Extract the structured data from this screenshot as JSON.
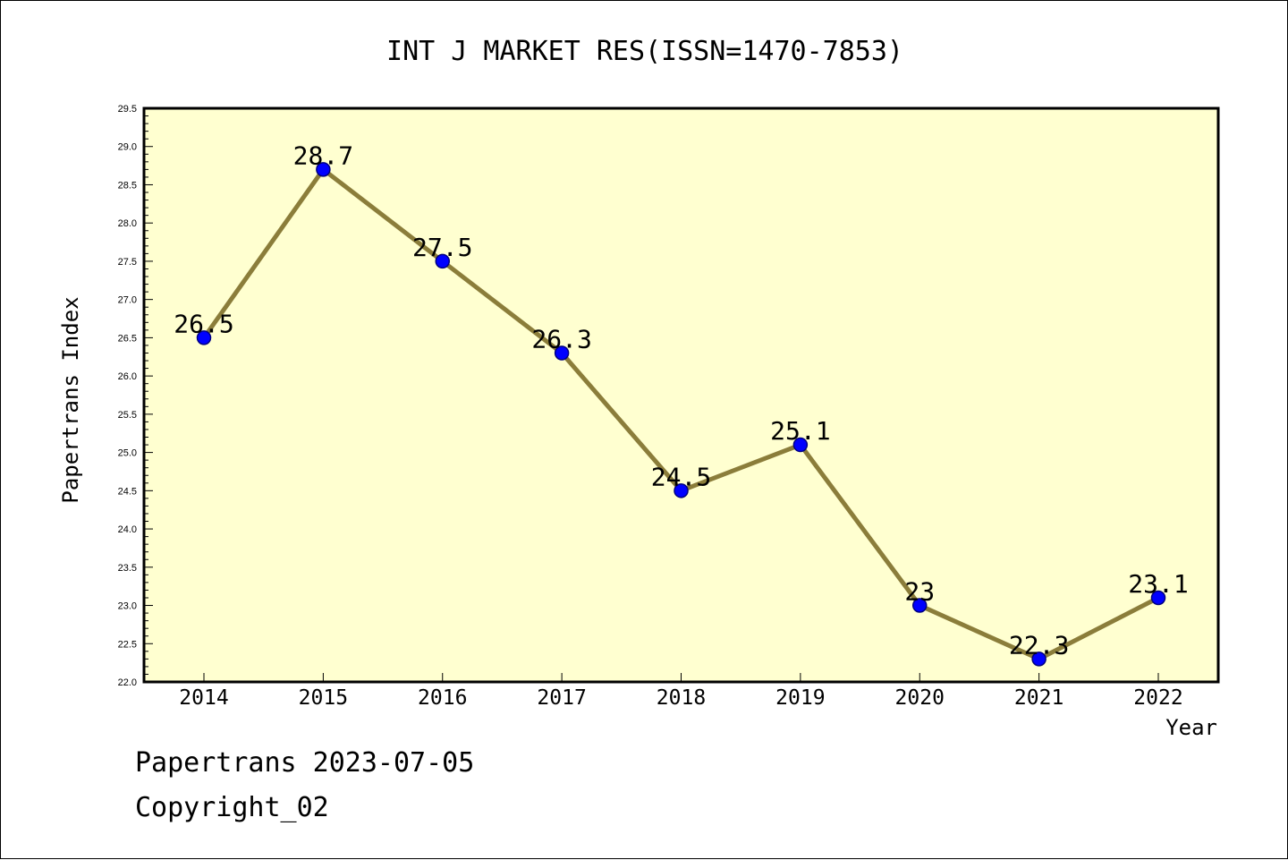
{
  "chart_data": {
    "type": "line",
    "title": "INT J MARKET RES(ISSN=1470-7853)",
    "xlabel": "Year",
    "ylabel": "Papertrans Index",
    "categories": [
      "2014",
      "2015",
      "2016",
      "2017",
      "2018",
      "2019",
      "2020",
      "2021",
      "2022"
    ],
    "series": [
      {
        "values": [
          26.5,
          28.7,
          27.5,
          26.3,
          24.5,
          25.1,
          23.0,
          22.3,
          23.1
        ]
      }
    ],
    "data_labels": [
      "26.5",
      "28.7",
      "27.5",
      "26.3",
      "24.5",
      "25.1",
      "23",
      "22.3",
      "23.1"
    ],
    "ylim": [
      22.0,
      29.5
    ],
    "yticks": [
      "22.0",
      "22.5",
      "23.0",
      "23.5",
      "24.0",
      "24.5",
      "25.0",
      "25.5",
      "26.0",
      "26.5",
      "27.0",
      "27.5",
      "28.0",
      "28.5",
      "29.0",
      "29.5"
    ],
    "grid": false,
    "legend": "none",
    "colors": {
      "plot_background": "#ffffd0",
      "line": "#8b7d3a",
      "marker_fill": "#0000ff",
      "marker_edge": "#000080"
    }
  },
  "footer": {
    "line1": "Papertrans 2023-07-05",
    "line2": "Copyright_02"
  }
}
